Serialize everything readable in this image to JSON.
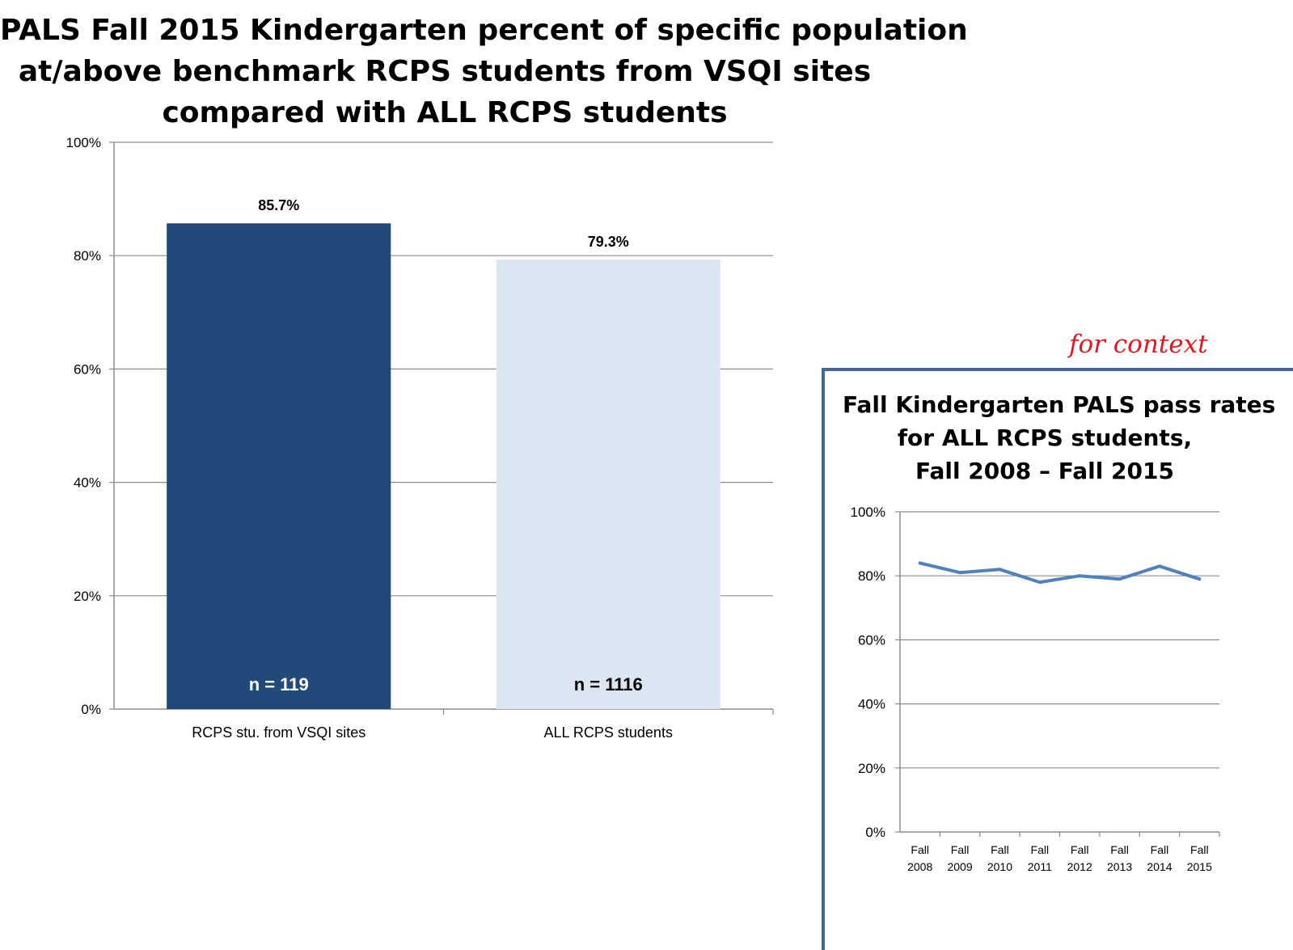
{
  "colors": {
    "bar_vsqi": "#214a7b",
    "bar_all": "#dce6f2",
    "line": "#4f81bd",
    "grid": "#8c8c8c",
    "axis": "#8c8c8c",
    "inset_border": "#41689a",
    "context_label": "#e8141a"
  },
  "main_chart": {
    "title_lines": [
      "PALS Fall 2015 Kindergarten percent of specific population",
      "at/above benchmark RCPS students from VSQI sites",
      "compared with ALL RCPS students"
    ]
  },
  "inset": {
    "context_label": "for context",
    "title_lines": [
      "Fall Kindergarten PALS pass rates",
      "for ALL RCPS students,",
      "Fall 2008 – Fall 2015"
    ]
  },
  "chart_data": [
    {
      "type": "bar",
      "title": "PALS Fall 2015 Kindergarten percent of specific population at/above benchmark RCPS students from VSQI sites compared with ALL RCPS students",
      "categories": [
        "RCPS stu. from VSQI sites",
        "ALL RCPS students"
      ],
      "values": [
        85.7,
        79.3
      ],
      "data_labels": [
        "85.7%",
        "79.3%"
      ],
      "n_labels": [
        "n = 119",
        "n = 1116"
      ],
      "ylim": [
        0,
        100
      ],
      "yticks": [
        0,
        20,
        40,
        60,
        80,
        100
      ],
      "ytick_labels": [
        "0%",
        "20%",
        "40%",
        "60%",
        "80%",
        "100%"
      ],
      "grid": true,
      "legend": "none"
    },
    {
      "type": "line",
      "title": "Fall Kindergarten PALS pass rates for ALL RCPS students, Fall 2008 – Fall 2015",
      "categories": [
        [
          "Fall",
          "2008"
        ],
        [
          "Fall",
          "2009"
        ],
        [
          "Fall",
          "2010"
        ],
        [
          "Fall",
          "2011"
        ],
        [
          "Fall",
          "2012"
        ],
        [
          "Fall",
          "2013"
        ],
        [
          "Fall",
          "2014"
        ],
        [
          "Fall",
          "2015"
        ]
      ],
      "values": [
        84,
        81,
        82,
        78,
        80,
        79,
        83,
        79
      ],
      "ylim": [
        0,
        100
      ],
      "yticks": [
        0,
        20,
        40,
        60,
        80,
        100
      ],
      "ytick_labels": [
        "0%",
        "20%",
        "40%",
        "60%",
        "80%",
        "100%"
      ],
      "grid": true,
      "legend": "none"
    }
  ]
}
